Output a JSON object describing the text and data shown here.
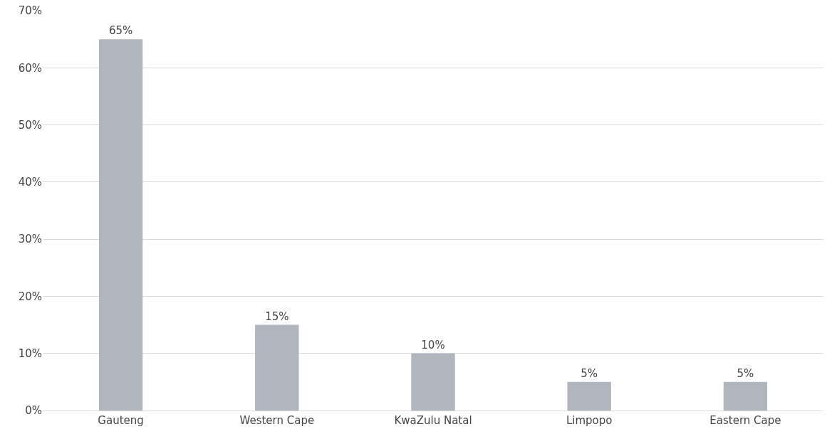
{
  "chart_data": {
    "type": "bar",
    "categories": [
      "Gauteng",
      "Western Cape",
      "KwaZulu Natal",
      "Limpopo",
      "Eastern Cape"
    ],
    "values": [
      65,
      15,
      10,
      5,
      5
    ],
    "value_labels": [
      "65%",
      "15%",
      "10%",
      "5%",
      "5%"
    ],
    "color": "#b1b5bd",
    "ylim": [
      0,
      70
    ],
    "yticks": [
      {
        "value": 0,
        "label": "0%"
      },
      {
        "value": 10,
        "label": "10%"
      },
      {
        "value": 20,
        "label": "20%"
      },
      {
        "value": 30,
        "label": "30%"
      },
      {
        "value": 40,
        "label": "40%"
      },
      {
        "value": 50,
        "label": "50%"
      },
      {
        "value": 60,
        "label": "60%"
      },
      {
        "value": 70,
        "label": "70%"
      }
    ],
    "grid": true,
    "legend": false
  }
}
